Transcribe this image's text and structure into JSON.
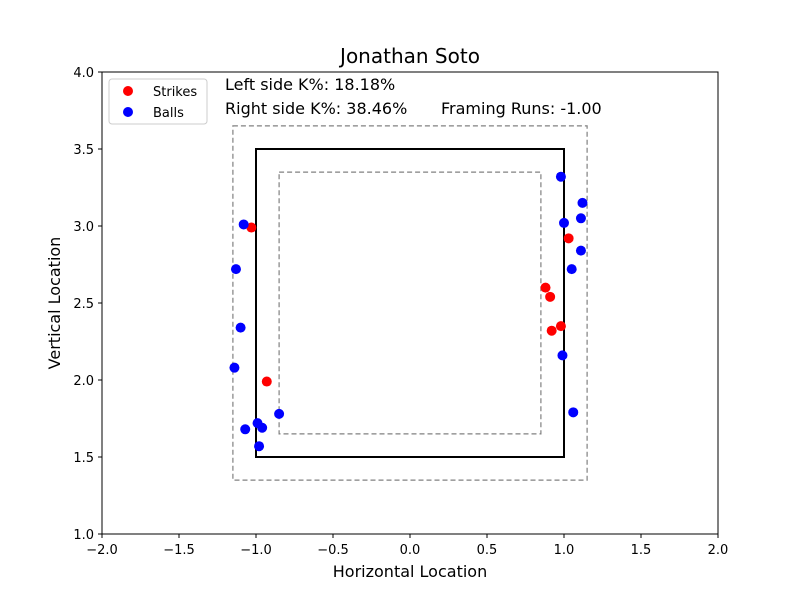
{
  "chart_data": {
    "type": "scatter",
    "title": "Jonathan  Soto",
    "xlabel": "Horizontal Location",
    "ylabel": "Vertical Location",
    "xlim": [
      -2.0,
      2.0
    ],
    "ylim": [
      1.0,
      4.0
    ],
    "xticks": [
      "−2.0",
      "−1.5",
      "−1.0",
      "−0.5",
      "0.0",
      "0.5",
      "1.0",
      "1.5",
      "2.0"
    ],
    "yticks": [
      "1.0",
      "1.5",
      "2.0",
      "2.5",
      "3.0",
      "3.5",
      "4.0"
    ],
    "grid": false,
    "legend_position": "top-left",
    "annotations": {
      "left_k": "Left side K%: 18.18%",
      "right_k": "Right side K%: 38.46%",
      "framing": "Framing Runs: -1.00"
    },
    "zones": {
      "strike_zone": {
        "x": [
          -1.0,
          1.0
        ],
        "y": [
          1.5,
          3.5
        ],
        "style": "solid"
      },
      "outer_zone": {
        "x": [
          -1.15,
          1.15
        ],
        "y": [
          1.35,
          3.65
        ],
        "style": "dashed"
      },
      "inner_zone": {
        "x": [
          -0.85,
          0.85
        ],
        "y": [
          1.65,
          3.35
        ],
        "style": "dashed"
      }
    },
    "series": [
      {
        "name": "Strikes",
        "color": "#ff0000",
        "points": [
          [
            -1.03,
            2.99
          ],
          [
            -0.93,
            1.99
          ],
          [
            0.88,
            2.6
          ],
          [
            0.91,
            2.54
          ],
          [
            0.92,
            2.32
          ],
          [
            0.98,
            2.35
          ],
          [
            1.03,
            2.92
          ]
        ]
      },
      {
        "name": "Balls",
        "color": "#0000ff",
        "points": [
          [
            -1.08,
            3.01
          ],
          [
            -1.13,
            2.72
          ],
          [
            -1.1,
            2.34
          ],
          [
            -1.14,
            2.08
          ],
          [
            -1.07,
            1.68
          ],
          [
            -0.99,
            1.72
          ],
          [
            -0.96,
            1.69
          ],
          [
            -0.98,
            1.57
          ],
          [
            -0.85,
            1.78
          ],
          [
            0.98,
            3.32
          ],
          [
            1.12,
            3.15
          ],
          [
            1.11,
            3.05
          ],
          [
            1.0,
            3.02
          ],
          [
            1.11,
            2.84
          ],
          [
            1.05,
            2.72
          ],
          [
            0.99,
            2.16
          ],
          [
            1.06,
            1.79
          ]
        ]
      }
    ]
  }
}
